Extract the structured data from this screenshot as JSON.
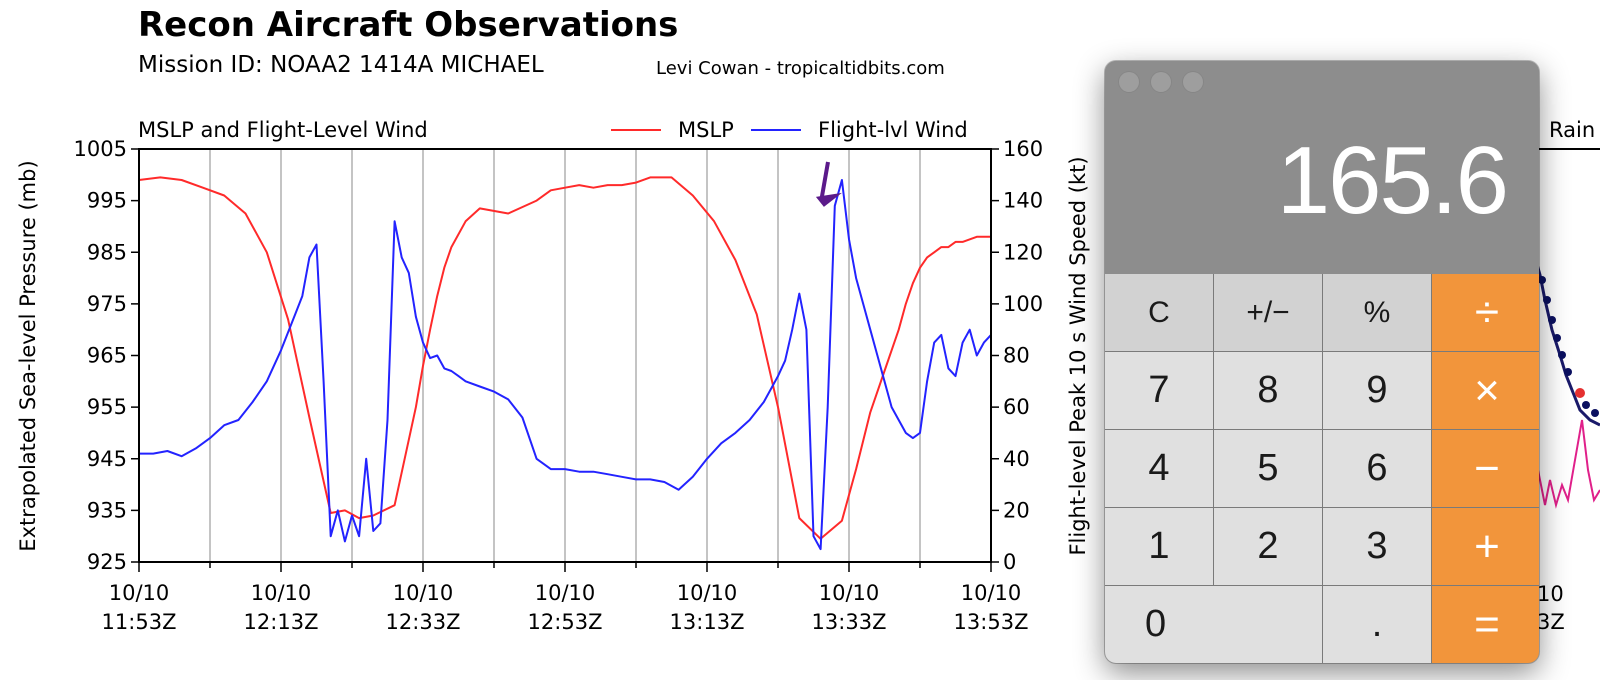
{
  "figure": {
    "title": "Recon Aircraft Observations",
    "subtitle": "Mission ID: NOAA2 1414A MICHAEL",
    "credit": "Levi Cowan - tropicaltidbits.com",
    "right_panel_label": "Rain",
    "right_panel_tick_top": "10",
    "right_panel_tick_bottom": "3Z"
  },
  "chart_data": {
    "type": "line",
    "title": "MSLP and Flight-Level Wind",
    "xlabel": "",
    "ylabel": "Extrapolated Sea-level Pressure (mb)",
    "y2label": "Flight-level Peak 10 s Wind Speed (kt)",
    "x_tick_labels": [
      [
        "10/10",
        "11:53Z"
      ],
      [
        "10/10",
        "12:13Z"
      ],
      [
        "10/10",
        "12:33Z"
      ],
      [
        "10/10",
        "12:53Z"
      ],
      [
        "10/10",
        "13:13Z"
      ],
      [
        "10/10",
        "13:33Z"
      ],
      [
        "10/10",
        "13:53Z"
      ]
    ],
    "xlim": [
      0,
      120
    ],
    "ylim": [
      925,
      1005
    ],
    "y2lim": [
      0,
      160
    ],
    "y_ticks": [
      925,
      935,
      945,
      955,
      965,
      975,
      985,
      995,
      1005
    ],
    "y2_ticks": [
      0,
      20,
      40,
      60,
      80,
      100,
      120,
      140,
      160
    ],
    "grid": "x-major-and-minor",
    "legend": "top-right",
    "x_unit": "minutes after 10/10 11:53Z",
    "series": [
      {
        "name": "MSLP",
        "axis": "left",
        "color": "#ff2a2a",
        "x": [
          0,
          3,
          6,
          9,
          12,
          15,
          18,
          21,
          24,
          27,
          29,
          31,
          33,
          36,
          39,
          40,
          41,
          42,
          43,
          44,
          46,
          48,
          52,
          56,
          58,
          60,
          62,
          64,
          66,
          68,
          70,
          72,
          75,
          78,
          81,
          84,
          87,
          90,
          93,
          96,
          99,
          101,
          103,
          105,
          107,
          108,
          109,
          110,
          111,
          112,
          113,
          114,
          115,
          116,
          118,
          120
        ],
        "values": [
          999,
          999.5,
          999,
          997.5,
          996,
          992.5,
          985,
          972,
          953,
          934.5,
          935,
          933.5,
          934,
          936,
          955,
          963,
          970,
          976.5,
          982,
          986,
          991,
          993.5,
          992.5,
          995,
          997,
          997.5,
          998,
          997.5,
          998,
          998,
          998.5,
          999.5,
          999.5,
          996,
          991,
          983.5,
          973,
          955,
          933.5,
          929.5,
          933,
          943,
          954,
          962,
          970,
          975,
          979,
          982,
          984,
          985,
          986,
          986,
          987,
          987,
          988,
          988
        ]
      },
      {
        "name": "Flight-lvl Wind",
        "axis": "right",
        "color": "#2323ff",
        "x": [
          0,
          2,
          4,
          6,
          8,
          10,
          12,
          14,
          16,
          18,
          20,
          22,
          23,
          24,
          25,
          26,
          27,
          28,
          29,
          30,
          31,
          32,
          33,
          34,
          35,
          36,
          37,
          38,
          39,
          40,
          41,
          42,
          43,
          44,
          45,
          46,
          48,
          50,
          52,
          54,
          56,
          58,
          60,
          62,
          64,
          66,
          68,
          70,
          72,
          74,
          76,
          78,
          80,
          82,
          84,
          86,
          88,
          90,
          91,
          92,
          93,
          94,
          95,
          96,
          97,
          98,
          99,
          100,
          101,
          102,
          103,
          104,
          105,
          106,
          107,
          108,
          109,
          110,
          111,
          112,
          113,
          114,
          115,
          116,
          117,
          118,
          119,
          120
        ],
        "values": [
          42,
          42,
          43,
          41,
          44,
          48,
          53,
          55,
          62,
          70,
          82,
          96,
          103,
          118,
          123,
          70,
          10,
          20,
          8,
          18,
          10,
          40,
          12,
          15,
          55,
          132,
          118,
          112,
          95,
          85,
          79,
          80,
          75,
          74,
          72,
          70,
          68,
          66,
          63,
          56,
          40,
          36,
          36,
          35,
          35,
          34,
          33,
          32,
          32,
          31,
          28,
          33,
          40,
          46,
          50,
          55,
          62,
          72,
          78,
          90,
          104,
          90,
          10,
          5,
          60,
          138,
          148,
          125,
          110,
          100,
          90,
          80,
          70,
          60,
          55,
          50,
          48,
          50,
          70,
          85,
          88,
          75,
          72,
          85,
          90,
          80,
          85,
          88
        ]
      }
    ],
    "annotations": [
      {
        "type": "arrow",
        "color": "#5b1a8a",
        "text": "",
        "points_to": {
          "x": 99,
          "y2": 143
        }
      }
    ]
  },
  "calculator": {
    "display": "165.6",
    "colors": {
      "display_bg": "#8d8d8d",
      "operator": "#f2953b",
      "key": "#e0e0e0",
      "function_key": "#d2d2d2"
    },
    "keys": [
      {
        "label": "C",
        "kind": "fn"
      },
      {
        "label": "+/−",
        "kind": "fn"
      },
      {
        "label": "%",
        "kind": "fn"
      },
      {
        "label": "÷",
        "kind": "op"
      },
      {
        "label": "7",
        "kind": "num"
      },
      {
        "label": "8",
        "kind": "num"
      },
      {
        "label": "9",
        "kind": "num"
      },
      {
        "label": "×",
        "kind": "op"
      },
      {
        "label": "4",
        "kind": "num"
      },
      {
        "label": "5",
        "kind": "num"
      },
      {
        "label": "6",
        "kind": "num"
      },
      {
        "label": "−",
        "kind": "op"
      },
      {
        "label": "1",
        "kind": "num"
      },
      {
        "label": "2",
        "kind": "num"
      },
      {
        "label": "3",
        "kind": "num"
      },
      {
        "label": "+",
        "kind": "op"
      },
      {
        "label": "0",
        "kind": "num"
      },
      {
        "label": ".",
        "kind": "num"
      },
      {
        "label": "=",
        "kind": "op"
      }
    ]
  }
}
